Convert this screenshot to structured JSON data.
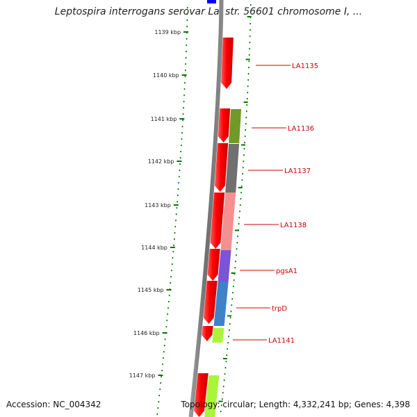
{
  "title": "Leptospira interrogans serovar Lai str. 56601 chromosome I, ...",
  "accession": "Accession: NC_004342",
  "summary": "Topology: circular; Length: 4,332,241 bp; Genes: 4,398",
  "colors": {
    "backbone": "#808080",
    "tick": "#007700",
    "forward_gene": "#ff0000",
    "label": "#cc0000",
    "top_feature": "#0000ff"
  },
  "kbp_marks": [
    "1139 kbp",
    "1140 kbp",
    "1141 kbp",
    "1142 kbp",
    "1143 kbp",
    "1144 kbp",
    "1145 kbp",
    "1146 kbp",
    "1147 kbp"
  ],
  "gene_labels": [
    "LA1135",
    "LA1136",
    "LA1137",
    "LA1138",
    "pgsA1",
    "trpD",
    "LA1141"
  ],
  "cog_colors": [
    "#6f9a28",
    "#707070",
    "#f49090",
    "#7a55d8",
    "#3f82c8",
    "#a9f53a",
    "#a9f53a"
  ]
}
